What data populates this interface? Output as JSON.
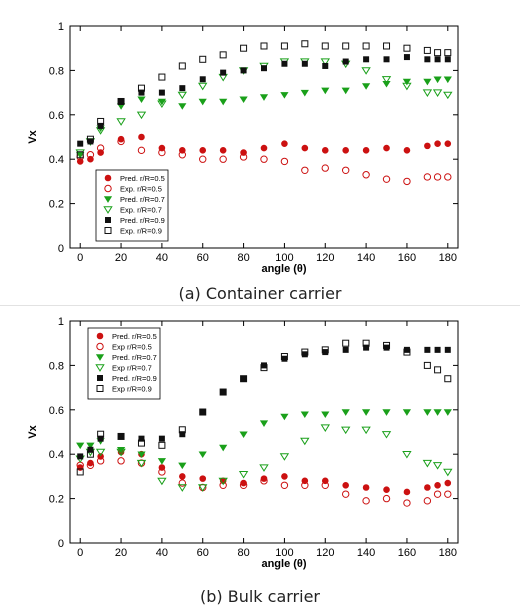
{
  "chart_data": [
    {
      "type": "scatter",
      "caption": "(a) Container carrier",
      "xlabel": "angle (θ)",
      "ylabel": "Vx",
      "xlim": [
        -5,
        185
      ],
      "ylim": [
        0,
        1
      ],
      "xticks": [
        0,
        20,
        40,
        60,
        80,
        100,
        120,
        140,
        160,
        180
      ],
      "yticks": [
        0,
        0.2,
        0.4,
        0.6,
        0.8,
        1
      ],
      "legend_position": "lower-left",
      "series": [
        {
          "name": "Pred.  r/R=0.5",
          "marker": "circle",
          "filled": true,
          "color": "#cc1111",
          "x": [
            0,
            5,
            10,
            20,
            30,
            40,
            50,
            60,
            70,
            80,
            90,
            100,
            110,
            120,
            130,
            140,
            150,
            160,
            170,
            175,
            180
          ],
          "y": [
            0.39,
            0.4,
            0.43,
            0.49,
            0.5,
            0.45,
            0.44,
            0.44,
            0.44,
            0.43,
            0.45,
            0.47,
            0.45,
            0.44,
            0.44,
            0.44,
            0.45,
            0.44,
            0.46,
            0.47,
            0.47
          ]
        },
        {
          "name": "Exp.  r/R=0.5",
          "marker": "circle",
          "filled": false,
          "color": "#cc1111",
          "x": [
            0,
            5,
            10,
            20,
            30,
            40,
            50,
            60,
            70,
            80,
            90,
            100,
            110,
            120,
            130,
            140,
            150,
            160,
            170,
            175,
            180
          ],
          "y": [
            0.41,
            0.42,
            0.45,
            0.48,
            0.44,
            0.43,
            0.42,
            0.4,
            0.4,
            0.41,
            0.4,
            0.39,
            0.35,
            0.36,
            0.35,
            0.33,
            0.31,
            0.3,
            0.32,
            0.32,
            0.32
          ]
        },
        {
          "name": "Pred.  r/R=0.7",
          "marker": "triangle-down",
          "filled": true,
          "color": "#1aa01a",
          "x": [
            0,
            5,
            10,
            20,
            30,
            40,
            50,
            60,
            70,
            80,
            90,
            100,
            110,
            120,
            130,
            140,
            150,
            160,
            170,
            175,
            180
          ],
          "y": [
            0.42,
            0.48,
            0.54,
            0.64,
            0.67,
            0.66,
            0.64,
            0.66,
            0.66,
            0.67,
            0.68,
            0.69,
            0.7,
            0.71,
            0.71,
            0.73,
            0.74,
            0.75,
            0.75,
            0.76,
            0.76
          ]
        },
        {
          "name": "Exp.  r/R=0.7",
          "marker": "triangle-down",
          "filled": false,
          "color": "#1aa01a",
          "x": [
            0,
            5,
            10,
            20,
            30,
            40,
            50,
            60,
            70,
            80,
            90,
            100,
            110,
            120,
            130,
            140,
            150,
            160,
            170,
            175,
            180
          ],
          "y": [
            0.43,
            0.48,
            0.53,
            0.57,
            0.6,
            0.65,
            0.69,
            0.73,
            0.77,
            0.8,
            0.82,
            0.84,
            0.84,
            0.84,
            0.83,
            0.8,
            0.76,
            0.73,
            0.7,
            0.7,
            0.69
          ]
        },
        {
          "name": "Pred.  r/R=0.9",
          "marker": "square",
          "filled": true,
          "color": "#111111",
          "x": [
            0,
            5,
            10,
            20,
            30,
            40,
            50,
            60,
            70,
            80,
            90,
            100,
            110,
            120,
            130,
            140,
            150,
            160,
            170,
            175,
            180
          ],
          "y": [
            0.47,
            0.48,
            0.55,
            0.66,
            0.7,
            0.7,
            0.72,
            0.76,
            0.79,
            0.8,
            0.81,
            0.83,
            0.83,
            0.82,
            0.84,
            0.85,
            0.85,
            0.86,
            0.85,
            0.85,
            0.85
          ]
        },
        {
          "name": "Exp.  r/R=0.9",
          "marker": "square",
          "filled": false,
          "color": "#111111",
          "x": [
            0,
            5,
            10,
            20,
            30,
            40,
            50,
            60,
            70,
            80,
            90,
            100,
            110,
            120,
            130,
            140,
            150,
            160,
            170,
            175,
            180
          ],
          "y": [
            0.42,
            0.49,
            0.57,
            0.66,
            0.72,
            0.77,
            0.82,
            0.85,
            0.87,
            0.9,
            0.91,
            0.91,
            0.92,
            0.91,
            0.91,
            0.91,
            0.91,
            0.9,
            0.89,
            0.88,
            0.88
          ]
        }
      ]
    },
    {
      "type": "scatter",
      "caption": "(b) Bulk carrier",
      "xlabel": "angle (θ)",
      "ylabel": "Vx",
      "xlim": [
        -5,
        185
      ],
      "ylim": [
        0,
        1
      ],
      "xticks": [
        0,
        20,
        40,
        60,
        80,
        100,
        120,
        140,
        160,
        180
      ],
      "yticks": [
        0,
        0.2,
        0.4,
        0.6,
        0.8,
        1
      ],
      "legend_position": "upper-left",
      "series": [
        {
          "name": "Pred.  r/R=0.5",
          "marker": "circle",
          "filled": true,
          "color": "#cc1111",
          "x": [
            0,
            5,
            10,
            20,
            30,
            40,
            50,
            60,
            70,
            80,
            90,
            100,
            110,
            120,
            130,
            140,
            150,
            160,
            170,
            175,
            180
          ],
          "y": [
            0.34,
            0.36,
            0.39,
            0.41,
            0.4,
            0.34,
            0.3,
            0.29,
            0.28,
            0.27,
            0.29,
            0.3,
            0.28,
            0.28,
            0.26,
            0.25,
            0.24,
            0.23,
            0.25,
            0.26,
            0.27
          ]
        },
        {
          "name": "Exp  r/R=0.5",
          "marker": "circle",
          "filled": false,
          "color": "#cc1111",
          "x": [
            0,
            5,
            10,
            20,
            30,
            40,
            50,
            60,
            70,
            80,
            90,
            100,
            110,
            120,
            130,
            140,
            150,
            160,
            170,
            175,
            180
          ],
          "y": [
            0.35,
            0.35,
            0.37,
            0.37,
            0.36,
            0.32,
            0.27,
            0.25,
            0.26,
            0.26,
            0.28,
            0.26,
            0.26,
            0.26,
            0.22,
            0.19,
            0.2,
            0.18,
            0.19,
            0.22,
            0.22
          ]
        },
        {
          "name": "Pred.  r/R=0.7",
          "marker": "triangle-down",
          "filled": true,
          "color": "#1aa01a",
          "x": [
            0,
            5,
            10,
            20,
            30,
            40,
            50,
            60,
            70,
            80,
            90,
            100,
            110,
            120,
            130,
            140,
            150,
            160,
            170,
            175,
            180
          ],
          "y": [
            0.44,
            0.44,
            0.46,
            0.42,
            0.4,
            0.37,
            0.35,
            0.4,
            0.43,
            0.49,
            0.54,
            0.57,
            0.58,
            0.58,
            0.59,
            0.59,
            0.59,
            0.59,
            0.59,
            0.59,
            0.59
          ]
        },
        {
          "name": "Exp  r/R=0.7",
          "marker": "triangle-down",
          "filled": false,
          "color": "#1aa01a",
          "x": [
            0,
            5,
            10,
            20,
            30,
            40,
            50,
            60,
            70,
            80,
            90,
            100,
            110,
            120,
            130,
            140,
            150,
            160,
            170,
            175,
            180
          ],
          "y": [
            0.38,
            0.41,
            0.41,
            0.41,
            0.36,
            0.28,
            0.25,
            0.25,
            0.28,
            0.31,
            0.34,
            0.39,
            0.46,
            0.52,
            0.51,
            0.51,
            0.49,
            0.4,
            0.36,
            0.35,
            0.32
          ]
        },
        {
          "name": "Pred.  r/R=0.9",
          "marker": "square",
          "filled": true,
          "color": "#111111",
          "x": [
            0,
            5,
            10,
            20,
            30,
            40,
            50,
            60,
            70,
            80,
            90,
            100,
            110,
            120,
            130,
            140,
            150,
            160,
            170,
            175,
            180
          ],
          "y": [
            0.39,
            0.42,
            0.47,
            0.48,
            0.47,
            0.47,
            0.49,
            0.59,
            0.68,
            0.74,
            0.8,
            0.83,
            0.85,
            0.86,
            0.87,
            0.88,
            0.88,
            0.87,
            0.87,
            0.87,
            0.87
          ]
        },
        {
          "name": "Exp  r/R=0.9",
          "marker": "square",
          "filled": false,
          "color": "#111111",
          "x": [
            0,
            5,
            10,
            20,
            30,
            40,
            50,
            60,
            70,
            80,
            90,
            100,
            110,
            120,
            130,
            140,
            150,
            160,
            170,
            175,
            180
          ],
          "y": [
            0.32,
            0.4,
            0.49,
            0.48,
            0.45,
            0.44,
            0.51,
            0.59,
            0.68,
            0.74,
            0.79,
            0.84,
            0.86,
            0.87,
            0.9,
            0.9,
            0.89,
            0.86,
            0.8,
            0.78,
            0.74
          ]
        }
      ]
    }
  ]
}
